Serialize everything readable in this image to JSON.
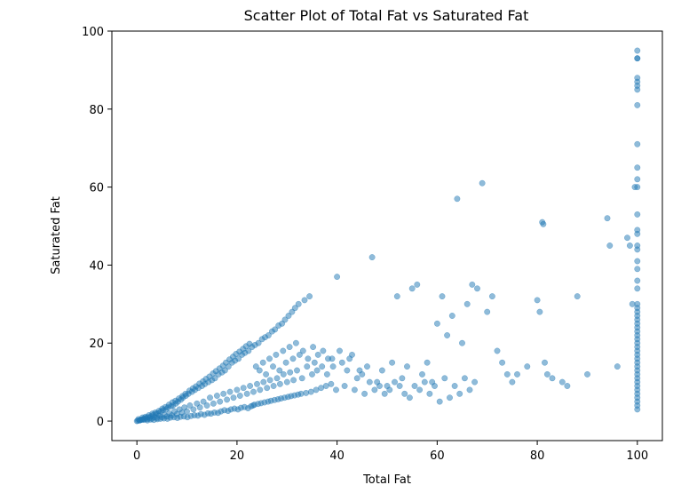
{
  "chart_data": {
    "type": "scatter",
    "title": "Scatter Plot of Total Fat vs Saturated Fat",
    "xlabel": "Total Fat",
    "ylabel": "Saturated Fat",
    "xlim": [
      -5,
      105
    ],
    "ylim": [
      -5,
      100
    ],
    "xticks": [
      0,
      20,
      40,
      60,
      80,
      100
    ],
    "yticks": [
      0,
      20,
      40,
      60,
      80,
      100
    ],
    "grid": false,
    "legend": "none",
    "marker_color": "#1f77b4",
    "series": [
      {
        "points": [
          [
            0,
            0
          ],
          [
            0.2,
            0.1
          ],
          [
            0.5,
            0.2
          ],
          [
            0.8,
            0.3
          ],
          [
            1,
            0.4
          ],
          [
            1.2,
            0.5
          ],
          [
            1.5,
            0.6
          ],
          [
            1.8,
            0.8
          ],
          [
            2,
            0.5
          ],
          [
            2.2,
            1
          ],
          [
            2.5,
            0.8
          ],
          [
            2.8,
            1.2
          ],
          [
            3,
            0.6
          ],
          [
            3.2,
            1.5
          ],
          [
            3.5,
            1
          ],
          [
            3.8,
            1.8
          ],
          [
            4,
            0.8
          ],
          [
            4.2,
            2
          ],
          [
            4.5,
            1.4
          ],
          [
            4.8,
            2.5
          ],
          [
            5,
            1
          ],
          [
            5.2,
            2.8
          ],
          [
            5.5,
            1.6
          ],
          [
            5.8,
            3
          ],
          [
            6,
            1.2
          ],
          [
            6.2,
            3.5
          ],
          [
            6.5,
            2
          ],
          [
            6.8,
            3.8
          ],
          [
            7,
            1.5
          ],
          [
            7.2,
            4
          ],
          [
            7.5,
            2.5
          ],
          [
            7.8,
            4.5
          ],
          [
            8,
            1.8
          ],
          [
            8.2,
            5
          ],
          [
            8.5,
            3
          ],
          [
            8.8,
            5.5
          ],
          [
            9,
            2.2
          ],
          [
            9.2,
            6
          ],
          [
            9.5,
            3.5
          ],
          [
            9.8,
            6.5
          ],
          [
            10,
            2.5
          ],
          [
            10.3,
            7
          ],
          [
            10.6,
            4
          ],
          [
            11,
            7.5
          ],
          [
            11.3,
            3
          ],
          [
            11.6,
            8
          ],
          [
            12,
            4.5
          ],
          [
            12.3,
            8.5
          ],
          [
            12.6,
            3.5
          ],
          [
            13,
            9
          ],
          [
            13.3,
            5
          ],
          [
            13.6,
            9.5
          ],
          [
            14,
            4
          ],
          [
            14.3,
            10
          ],
          [
            14.6,
            6
          ],
          [
            15,
            10.5
          ],
          [
            15.3,
            4.5
          ],
          [
            15.6,
            11
          ],
          [
            16,
            6.5
          ],
          [
            16.3,
            12
          ],
          [
            16.6,
            5
          ],
          [
            17,
            12.5
          ],
          [
            17.3,
            7
          ],
          [
            17.6,
            13
          ],
          [
            18,
            5.5
          ],
          [
            18.3,
            14
          ],
          [
            18.6,
            7.5
          ],
          [
            19,
            15
          ],
          [
            19.3,
            6
          ],
          [
            19.6,
            15.5
          ],
          [
            20,
            8
          ],
          [
            20.3,
            16
          ],
          [
            20.6,
            6.5
          ],
          [
            21,
            17
          ],
          [
            21.3,
            8.5
          ],
          [
            21.6,
            17.5
          ],
          [
            22,
            7
          ],
          [
            22.3,
            18
          ],
          [
            22.6,
            9
          ],
          [
            23,
            19
          ],
          [
            23.3,
            7.5
          ],
          [
            23.6,
            19.5
          ],
          [
            24,
            9.5
          ],
          [
            24.3,
            20
          ],
          [
            24.6,
            8
          ],
          [
            25,
            21
          ],
          [
            25.3,
            10
          ],
          [
            25.6,
            21.5
          ],
          [
            26,
            8.5
          ],
          [
            26.3,
            22
          ],
          [
            26.6,
            10.5
          ],
          [
            27,
            23
          ],
          [
            27.3,
            9
          ],
          [
            27.6,
            23.5
          ],
          [
            28,
            11
          ],
          [
            28.3,
            24.5
          ],
          [
            28.6,
            9.5
          ],
          [
            29,
            25
          ],
          [
            29.3,
            12
          ],
          [
            29.6,
            26
          ],
          [
            30,
            10
          ],
          [
            30.3,
            27
          ],
          [
            30.6,
            12.5
          ],
          [
            31,
            28
          ],
          [
            31.3,
            10.5
          ],
          [
            31.6,
            29
          ],
          [
            32,
            13
          ],
          [
            32.3,
            30
          ],
          [
            33,
            11
          ],
          [
            33.5,
            31
          ],
          [
            34,
            14
          ],
          [
            34.5,
            32
          ],
          [
            35,
            12
          ],
          [
            35.5,
            15
          ],
          [
            36,
            13
          ],
          [
            37,
            14
          ],
          [
            38,
            12
          ],
          [
            39,
            16
          ],
          [
            40,
            37
          ],
          [
            41,
            15
          ],
          [
            42,
            13
          ],
          [
            43,
            17
          ],
          [
            44,
            11
          ],
          [
            45,
            12
          ],
          [
            46,
            14
          ],
          [
            47,
            42
          ],
          [
            48,
            10
          ],
          [
            49,
            13
          ],
          [
            50,
            9
          ],
          [
            51,
            15
          ],
          [
            52,
            32
          ],
          [
            53,
            11
          ],
          [
            54,
            14
          ],
          [
            55,
            34
          ],
          [
            56,
            35
          ],
          [
            57,
            12
          ],
          [
            58,
            15
          ],
          [
            59,
            10
          ],
          [
            60,
            25
          ],
          [
            61,
            32
          ],
          [
            62,
            22
          ],
          [
            63,
            27
          ],
          [
            64,
            57
          ],
          [
            65,
            20
          ],
          [
            66,
            30
          ],
          [
            67,
            35
          ],
          [
            68,
            34
          ],
          [
            69,
            61
          ],
          [
            70,
            28
          ],
          [
            71,
            32
          ],
          [
            72,
            18
          ],
          [
            73,
            15
          ],
          [
            74,
            12
          ],
          [
            75,
            10
          ],
          [
            76,
            12
          ],
          [
            78,
            14
          ],
          [
            80,
            31
          ],
          [
            80.5,
            28
          ],
          [
            81,
            51
          ],
          [
            81.2,
            50.5
          ],
          [
            81.5,
            15
          ],
          [
            82,
            12
          ],
          [
            83,
            11
          ],
          [
            85,
            10
          ],
          [
            86,
            9
          ],
          [
            88,
            32
          ],
          [
            90,
            12
          ],
          [
            94,
            52
          ],
          [
            94.5,
            45
          ],
          [
            96,
            14
          ],
          [
            98,
            47
          ],
          [
            98.5,
            45
          ],
          [
            99,
            30
          ],
          [
            99.5,
            60
          ],
          [
            0.3,
            0.5
          ],
          [
            0.6,
            0.2
          ],
          [
            1.1,
            0.9
          ],
          [
            1.4,
            0.3
          ],
          [
            1.7,
            1.1
          ],
          [
            2.1,
            0.2
          ],
          [
            2.4,
            1.5
          ],
          [
            2.7,
            0.4
          ],
          [
            3.1,
            1.9
          ],
          [
            3.4,
            0.3
          ],
          [
            3.7,
            2.2
          ],
          [
            4.1,
            0.5
          ],
          [
            4.4,
            2.6
          ],
          [
            4.7,
            0.6
          ],
          [
            5.1,
            3.2
          ],
          [
            5.4,
            0.7
          ],
          [
            5.7,
            3.6
          ],
          [
            6.1,
            0.6
          ],
          [
            6.4,
            4.2
          ],
          [
            6.7,
            0.9
          ],
          [
            7.1,
            4.8
          ],
          [
            7.4,
            1
          ],
          [
            7.7,
            5.2
          ],
          [
            8.1,
            0.8
          ],
          [
            8.4,
            5.8
          ],
          [
            8.7,
            1.1
          ],
          [
            9.1,
            6.4
          ],
          [
            9.4,
            1.2
          ],
          [
            9.7,
            7
          ],
          [
            10.1,
            1
          ],
          [
            10.5,
            7.8
          ],
          [
            10.8,
            1.3
          ],
          [
            11.2,
            8.4
          ],
          [
            11.5,
            1.5
          ],
          [
            11.8,
            8.9
          ],
          [
            12.2,
            1.4
          ],
          [
            12.5,
            9.6
          ],
          [
            12.8,
            1.8
          ],
          [
            13.2,
            10.2
          ],
          [
            13.5,
            1.6
          ],
          [
            13.8,
            10.8
          ],
          [
            14.2,
            2
          ],
          [
            14.5,
            11.4
          ],
          [
            14.8,
            1.9
          ],
          [
            15.2,
            12.2
          ],
          [
            15.5,
            2.2
          ],
          [
            15.8,
            12.8
          ],
          [
            16.2,
            2.1
          ],
          [
            16.5,
            13.5
          ],
          [
            16.8,
            2.5
          ],
          [
            17.2,
            14.2
          ],
          [
            17.5,
            2.8
          ],
          [
            17.8,
            15
          ],
          [
            18.2,
            2.6
          ],
          [
            18.5,
            15.8
          ],
          [
            18.8,
            3
          ],
          [
            19.2,
            16.5
          ],
          [
            19.5,
            3.2
          ],
          [
            19.8,
            17.2
          ],
          [
            20.2,
            3
          ],
          [
            20.5,
            17.8
          ],
          [
            20.8,
            3.4
          ],
          [
            21.2,
            18.5
          ],
          [
            21.5,
            3.6
          ],
          [
            21.8,
            19.2
          ],
          [
            22.2,
            3.3
          ],
          [
            22.5,
            19.8
          ],
          [
            22.8,
            3.8
          ],
          [
            23.2,
            4
          ],
          [
            23.5,
            4.2
          ],
          [
            23.8,
            14
          ],
          [
            24.2,
            4.4
          ],
          [
            24.5,
            13
          ],
          [
            24.8,
            4.6
          ],
          [
            25.2,
            15
          ],
          [
            25.5,
            4.8
          ],
          [
            25.8,
            12
          ],
          [
            26.2,
            5
          ],
          [
            26.5,
            16
          ],
          [
            26.8,
            5.2
          ],
          [
            27.2,
            14
          ],
          [
            27.5,
            5.4
          ],
          [
            27.8,
            17
          ],
          [
            28.2,
            5.6
          ],
          [
            28.5,
            13
          ],
          [
            28.8,
            5.8
          ],
          [
            29.2,
            18
          ],
          [
            29.5,
            6
          ],
          [
            29.8,
            15
          ],
          [
            30.2,
            6.2
          ],
          [
            30.5,
            19
          ],
          [
            30.8,
            6.4
          ],
          [
            31.2,
            16
          ],
          [
            31.5,
            6.6
          ],
          [
            31.8,
            20
          ],
          [
            32.2,
            6.8
          ],
          [
            32.5,
            17
          ],
          [
            32.8,
            7
          ],
          [
            33.2,
            18
          ],
          [
            33.8,
            7.2
          ],
          [
            34.2,
            16
          ],
          [
            34.8,
            7.5
          ],
          [
            35.2,
            19
          ],
          [
            35.8,
            8
          ],
          [
            36.2,
            17
          ],
          [
            36.8,
            8.5
          ],
          [
            37.2,
            18
          ],
          [
            37.8,
            9
          ],
          [
            38.2,
            16
          ],
          [
            38.8,
            9.5
          ],
          [
            39.2,
            14
          ],
          [
            39.8,
            8
          ],
          [
            40.5,
            18
          ],
          [
            41.5,
            9
          ],
          [
            42.5,
            16
          ],
          [
            43.5,
            8
          ],
          [
            44.5,
            13
          ],
          [
            45.5,
            7
          ],
          [
            46.5,
            10
          ],
          [
            47.5,
            8
          ],
          [
            48.5,
            9
          ],
          [
            49.5,
            7
          ],
          [
            50.5,
            8
          ],
          [
            51.5,
            10
          ],
          [
            52.5,
            9
          ],
          [
            53.5,
            7
          ],
          [
            54.5,
            6
          ],
          [
            55.5,
            9
          ],
          [
            56.5,
            8
          ],
          [
            57.5,
            10
          ],
          [
            58.5,
            7
          ],
          [
            59.5,
            9
          ],
          [
            60.5,
            5
          ],
          [
            61.5,
            11
          ],
          [
            62.5,
            6
          ],
          [
            63.5,
            9
          ],
          [
            64.5,
            7
          ],
          [
            65.5,
            11
          ],
          [
            66.5,
            8
          ],
          [
            67.5,
            10
          ]
        ],
        "x100_values": [
          95,
          93,
          93,
          88,
          87,
          86,
          85,
          81,
          71,
          65,
          62,
          60,
          53,
          49,
          48,
          45,
          44,
          41,
          39,
          36,
          34,
          30,
          29,
          28,
          27,
          26,
          25,
          24,
          23,
          22,
          21,
          20,
          19,
          18,
          17,
          16,
          15,
          14,
          13,
          12,
          11,
          10,
          9,
          8,
          7,
          6,
          5,
          4,
          3
        ]
      }
    ]
  }
}
